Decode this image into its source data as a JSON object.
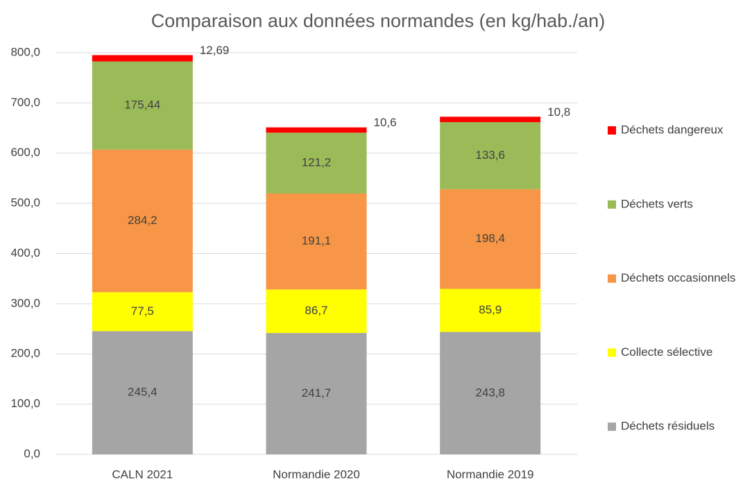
{
  "chart_data": {
    "type": "stacked_bar",
    "title": "Comparaison aux données normandes (en kg/hab./an)",
    "categories": [
      "CALN 2021",
      "Normandie 2020",
      "Normandie 2019"
    ],
    "series": [
      {
        "name": "Déchets résiduels",
        "color": "#a5a5a5",
        "values": [
          245.4,
          241.7,
          243.8
        ],
        "value_labels": [
          "245,4",
          "241,7",
          "243,8"
        ]
      },
      {
        "name": "Collecte sélective",
        "color": "#ffff00",
        "values": [
          77.5,
          86.7,
          85.9
        ],
        "value_labels": [
          "77,5",
          "86,7",
          "85,9"
        ]
      },
      {
        "name": "Déchets occasionnels",
        "color": "#f79646",
        "values": [
          284.2,
          191.1,
          198.4
        ],
        "value_labels": [
          "284,2",
          "191,1",
          "198,4"
        ]
      },
      {
        "name": "Déchets verts",
        "color": "#9bbb59",
        "values": [
          175.44,
          121.2,
          133.6
        ],
        "value_labels": [
          "175,44",
          "121,2",
          "133,6"
        ]
      },
      {
        "name": "Déchets dangereux",
        "color": "#ff0000",
        "values": [
          12.69,
          10.6,
          10.8
        ],
        "value_labels": [
          "12,69",
          "10,6",
          "10,8"
        ]
      }
    ],
    "ylim": [
      0,
      800
    ],
    "yticks": [
      {
        "value": 0,
        "label": "0,0"
      },
      {
        "value": 100,
        "label": "100,0"
      },
      {
        "value": 200,
        "label": "200,0"
      },
      {
        "value": 300,
        "label": "300,0"
      },
      {
        "value": 400,
        "label": "400,0"
      },
      {
        "value": 500,
        "label": "500,0"
      },
      {
        "value": 600,
        "label": "600,0"
      },
      {
        "value": 700,
        "label": "700,0"
      },
      {
        "value": 800,
        "label": "800,0"
      }
    ],
    "grid": true,
    "legend": "right"
  }
}
